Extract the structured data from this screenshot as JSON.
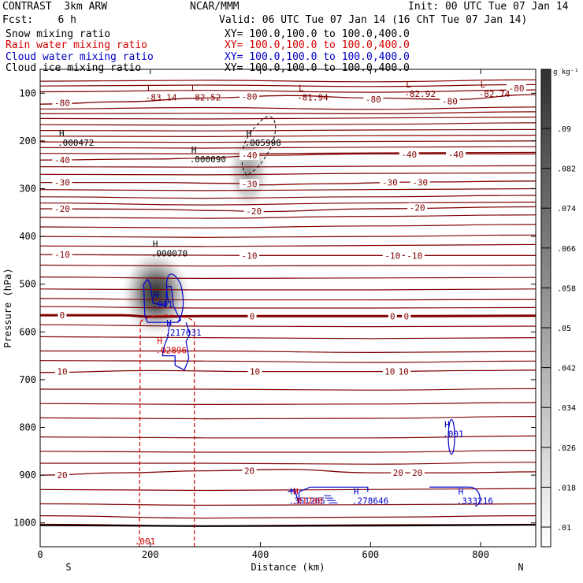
{
  "header": {
    "model": "CONTRAST  3km ARW",
    "center": "NCAR/MMM",
    "init": "Init: 00 UTC Tue 07 Jan 14",
    "fcst": "Fcst:    6 h",
    "valid": "Valid: 06 UTC Tue 07 Jan 14 (16 ChT Tue 07 Jan 14)"
  },
  "fields": [
    {
      "label": "Snow mixing ratio",
      "xy": "XY= 100.0,100.0 to 100.0,400.0",
      "color": "#000000"
    },
    {
      "label": "Rain water mixing ratio",
      "xy": "XY= 100.0,100.0 to 100.0,400.0",
      "color": "#d00000"
    },
    {
      "label": "Cloud water mixing ratio",
      "xy": "XY= 100.0,100.0 to 100.0,400.0",
      "color": "#0000c8"
    },
    {
      "label": "Cloud ice mixing ratio",
      "xy": "XY= 100.0,100.0 to 100.0,400.0",
      "color": "#000000"
    }
  ],
  "colors": {
    "temperature": "#800000",
    "rain": "#d00000",
    "cloud_water": "#0000c8",
    "ice": "#000000"
  },
  "chart_data": {
    "type": "heatmap",
    "xlabel": "Distance (km)",
    "ylabel": "Pressure (hPa)",
    "xlim": [
      0,
      900
    ],
    "ylim": [
      1050,
      50
    ],
    "xticks": [
      "0",
      "200",
      "400",
      "600",
      "800"
    ],
    "yticks": [
      "100",
      "200",
      "300",
      "400",
      "500",
      "600",
      "700",
      "800",
      "900",
      "1000"
    ],
    "xtick_values": [
      0,
      200,
      400,
      600,
      800
    ],
    "ytick_values": [
      100,
      200,
      300,
      400,
      500,
      600,
      700,
      800,
      900,
      1000
    ],
    "direction_left": "S",
    "direction_right": "N",
    "colorbar": {
      "unit": "g kg⁻¹",
      "ticks": [
        ".01",
        ".018",
        ".026",
        ".034",
        ".042",
        ".05",
        ".058",
        ".066",
        ".074",
        ".082",
        ".09"
      ],
      "tick_values": [
        0.01,
        0.018,
        0.026,
        0.034,
        0.042,
        0.05,
        0.058,
        0.066,
        0.074,
        0.082,
        0.09
      ]
    },
    "snow_maxima": [
      {
        "x": 210,
        "p": 520,
        "value": 0.1
      },
      {
        "x": 378,
        "p": 265,
        "value": 0.05
      }
    ],
    "isotherm_levels": [
      -80,
      -40,
      -30,
      -20,
      -10,
      0,
      10,
      20
    ],
    "isotherms": [
      {
        "level": "-80",
        "bold": false,
        "labels": [
          [
            40,
            120
          ],
          [
            380,
            107
          ],
          [
            605,
            113
          ],
          [
            865,
            90
          ],
          [
            744,
            117
          ]
        ],
        "points": [
          [
            0,
            123
          ],
          [
            150,
            118
          ],
          [
            300,
            110
          ],
          [
            450,
            105
          ],
          [
            600,
            110
          ],
          [
            750,
            113
          ],
          [
            900,
            103
          ]
        ]
      },
      {
        "level": "-40",
        "bold": false,
        "labels": [
          [
            40,
            240
          ],
          [
            380,
            230
          ],
          [
            670,
            228
          ],
          [
            755,
            228
          ]
        ],
        "points": [
          [
            0,
            240
          ],
          [
            200,
            238
          ],
          [
            300,
            236
          ],
          [
            400,
            230
          ],
          [
            600,
            227
          ],
          [
            900,
            227
          ]
        ]
      },
      {
        "level": "-30",
        "bold": false,
        "labels": [
          [
            40,
            287
          ],
          [
            380,
            290
          ],
          [
            635,
            287
          ],
          [
            690,
            287
          ]
        ],
        "points": [
          [
            0,
            287
          ],
          [
            200,
            287
          ],
          [
            350,
            289
          ],
          [
            400,
            292
          ],
          [
            500,
            290
          ],
          [
            700,
            286
          ],
          [
            900,
            284
          ]
        ]
      },
      {
        "level": "-20",
        "bold": false,
        "labels": [
          [
            40,
            342
          ],
          [
            388,
            347
          ],
          [
            685,
            340
          ]
        ],
        "points": [
          [
            0,
            342
          ],
          [
            200,
            343
          ],
          [
            330,
            346
          ],
          [
            400,
            348
          ],
          [
            600,
            342
          ],
          [
            900,
            338
          ]
        ]
      },
      {
        "level": "-10",
        "bold": false,
        "labels": [
          [
            40,
            438
          ],
          [
            380,
            440
          ],
          [
            640,
            440
          ],
          [
            680,
            440
          ]
        ],
        "points": [
          [
            0,
            438
          ],
          [
            200,
            439
          ],
          [
            400,
            440
          ],
          [
            600,
            440
          ],
          [
            900,
            440
          ]
        ]
      },
      {
        "level": "0",
        "bold": true,
        "labels": [
          [
            40,
            565
          ],
          [
            385,
            567
          ],
          [
            640,
            567
          ],
          [
            665,
            567
          ]
        ],
        "points": [
          [
            0,
            565
          ],
          [
            150,
            565
          ],
          [
            200,
            568
          ],
          [
            300,
            567
          ],
          [
            500,
            567
          ],
          [
            700,
            567
          ],
          [
            900,
            566
          ]
        ]
      },
      {
        "level": "10",
        "bold": false,
        "labels": [
          [
            40,
            683
          ],
          [
            390,
            683
          ],
          [
            635,
            683
          ],
          [
            660,
            683
          ]
        ],
        "points": [
          [
            0,
            685
          ],
          [
            200,
            681
          ],
          [
            400,
            683
          ],
          [
            600,
            683
          ],
          [
            800,
            681
          ],
          [
            900,
            680
          ]
        ]
      },
      {
        "level": "20",
        "bold": false,
        "labels": [
          [
            40,
            900
          ],
          [
            380,
            891
          ],
          [
            650,
            895
          ],
          [
            685,
            895
          ]
        ],
        "points": [
          [
            0,
            900
          ],
          [
            150,
            895
          ],
          [
            300,
            891
          ],
          [
            450,
            888
          ],
          [
            600,
            895
          ],
          [
            750,
            895
          ],
          [
            900,
            893
          ]
        ]
      }
    ],
    "extra_contours": [
      [
        [
          0,
          75
        ],
        [
          300,
          73
        ],
        [
          600,
          76
        ],
        [
          900,
          72
        ]
      ],
      [
        [
          0,
          85
        ],
        [
          300,
          83
        ],
        [
          600,
          86
        ],
        [
          900,
          82
        ]
      ],
      [
        [
          0,
          97
        ],
        [
          300,
          94
        ],
        [
          600,
          98
        ],
        [
          900,
          93
        ]
      ],
      [
        [
          0,
          133
        ],
        [
          300,
          130
        ],
        [
          600,
          134
        ],
        [
          900,
          129
        ]
      ],
      [
        [
          0,
          143
        ],
        [
          300,
          142
        ],
        [
          600,
          143
        ],
        [
          900,
          139
        ]
      ],
      [
        [
          0,
          153
        ],
        [
          300,
          154
        ],
        [
          600,
          152
        ],
        [
          900,
          150
        ]
      ],
      [
        [
          0,
          166
        ],
        [
          300,
          167
        ],
        [
          600,
          165
        ],
        [
          900,
          162
        ]
      ],
      [
        [
          0,
          178
        ],
        [
          300,
          179
        ],
        [
          600,
          177
        ],
        [
          900,
          176
        ]
      ],
      [
        [
          0,
          190
        ],
        [
          300,
          191
        ],
        [
          600,
          189
        ],
        [
          900,
          188
        ]
      ],
      [
        [
          0,
          202
        ],
        [
          300,
          203
        ],
        [
          600,
          201
        ],
        [
          900,
          200
        ]
      ],
      [
        [
          0,
          214
        ],
        [
          300,
          215
        ],
        [
          600,
          213
        ],
        [
          900,
          212
        ]
      ],
      [
        [
          0,
          226
        ],
        [
          300,
          227
        ],
        [
          600,
          225
        ],
        [
          900,
          224
        ]
      ],
      [
        [
          0,
          254
        ],
        [
          300,
          255
        ],
        [
          600,
          253
        ],
        [
          900,
          252
        ]
      ],
      [
        [
          0,
          270
        ],
        [
          300,
          271
        ],
        [
          600,
          268
        ],
        [
          900,
          267
        ]
      ],
      [
        [
          0,
          302
        ],
        [
          300,
          304
        ],
        [
          600,
          302
        ],
        [
          900,
          300
        ]
      ],
      [
        [
          0,
          317
        ],
        [
          300,
          320
        ],
        [
          600,
          317
        ],
        [
          900,
          314
        ]
      ],
      [
        [
          0,
          330
        ],
        [
          300,
          334
        ],
        [
          600,
          330
        ],
        [
          900,
          328
        ]
      ],
      [
        [
          0,
          360
        ],
        [
          300,
          362
        ],
        [
          600,
          358
        ],
        [
          900,
          355
        ]
      ],
      [
        [
          0,
          380
        ],
        [
          300,
          382
        ],
        [
          600,
          378
        ],
        [
          900,
          375
        ]
      ],
      [
        [
          0,
          400
        ],
        [
          300,
          402
        ],
        [
          600,
          400
        ],
        [
          900,
          397
        ]
      ],
      [
        [
          0,
          420
        ],
        [
          300,
          421
        ],
        [
          600,
          419
        ],
        [
          900,
          417
        ]
      ],
      [
        [
          0,
          460
        ],
        [
          300,
          462
        ],
        [
          600,
          461
        ],
        [
          900,
          460
        ]
      ],
      [
        [
          0,
          485
        ],
        [
          300,
          488
        ],
        [
          600,
          487
        ],
        [
          900,
          486
        ]
      ],
      [
        [
          0,
          510
        ],
        [
          300,
          512
        ],
        [
          600,
          512
        ],
        [
          900,
          510
        ]
      ],
      [
        [
          0,
          530
        ],
        [
          300,
          533
        ],
        [
          600,
          533
        ],
        [
          900,
          532
        ]
      ],
      [
        [
          0,
          547
        ],
        [
          300,
          550
        ],
        [
          600,
          550
        ],
        [
          900,
          549
        ]
      ],
      [
        [
          0,
          585
        ],
        [
          300,
          588
        ],
        [
          600,
          589
        ],
        [
          900,
          588
        ]
      ],
      [
        [
          0,
          610
        ],
        [
          300,
          612
        ],
        [
          600,
          614
        ],
        [
          900,
          612
        ]
      ],
      [
        [
          0,
          640
        ],
        [
          300,
          640
        ],
        [
          600,
          643
        ],
        [
          900,
          641
        ]
      ],
      [
        [
          0,
          660
        ],
        [
          300,
          661
        ],
        [
          600,
          664
        ],
        [
          900,
          661
        ]
      ],
      [
        [
          0,
          720
        ],
        [
          300,
          720
        ],
        [
          600,
          722
        ],
        [
          900,
          719
        ]
      ],
      [
        [
          0,
          750
        ],
        [
          300,
          752
        ],
        [
          600,
          751
        ],
        [
          900,
          748
        ]
      ],
      [
        [
          0,
          780
        ],
        [
          300,
          782
        ],
        [
          600,
          781
        ],
        [
          900,
          777
        ]
      ],
      [
        [
          0,
          820
        ],
        [
          300,
          822
        ],
        [
          600,
          822
        ],
        [
          900,
          818
        ]
      ],
      [
        [
          0,
          850
        ],
        [
          300,
          852
        ],
        [
          600,
          852
        ],
        [
          900,
          848
        ]
      ],
      [
        [
          0,
          875
        ],
        [
          300,
          875
        ],
        [
          600,
          877
        ],
        [
          900,
          873
        ]
      ],
      [
        [
          0,
          930
        ],
        [
          300,
          932
        ],
        [
          600,
          930
        ],
        [
          900,
          928
        ]
      ],
      [
        [
          0,
          960
        ],
        [
          300,
          963
        ],
        [
          600,
          962
        ],
        [
          900,
          960
        ]
      ],
      [
        [
          0,
          985
        ],
        [
          300,
          990
        ],
        [
          600,
          988
        ],
        [
          900,
          985
        ]
      ],
      [
        [
          0,
          1003
        ],
        [
          300,
          1006
        ],
        [
          600,
          1004
        ],
        [
          900,
          1003
        ]
      ]
    ],
    "temperature_extrema": [
      {
        "type": "L",
        "value": "-83.14",
        "x": 200,
        "p": 110
      },
      {
        "type": "L",
        "value": "-82.52",
        "x": 280,
        "p": 110
      },
      {
        "type": "L",
        "value": "-81.94",
        "x": 475,
        "p": 110
      },
      {
        "type": "L",
        "value": "-82.92",
        "x": 670,
        "p": 103
      },
      {
        "type": "L",
        "value": "-82.74",
        "x": 805,
        "p": 103
      }
    ],
    "ice_extrema": [
      {
        "type": "H",
        "value": ".000472",
        "x": 40,
        "p": 205
      },
      {
        "type": "H",
        "value": ".005998",
        "x": 380,
        "p": 205
      },
      {
        "type": "H",
        "value": ".000090",
        "x": 280,
        "p": 240
      },
      {
        "type": "H",
        "value": ".000070",
        "x": 210,
        "p": 437
      }
    ],
    "cloud_water_extrema": [
      {
        "type": "H",
        "value": ".001",
        "x": 212,
        "p": 543
      },
      {
        "type": "H",
        "value": ".217031",
        "x": 235,
        "p": 603
      },
      {
        "type": "H",
        "value": ".001",
        "x": 740,
        "p": 815
      },
      {
        "type": "H",
        "value": ".351265",
        "x": 460,
        "p": 955
      },
      {
        "type": "H",
        "value": ".278646",
        "x": 575,
        "p": 955
      },
      {
        "type": "H",
        "value": ".333216",
        "x": 765,
        "p": 955
      }
    ],
    "rain_extrema": [
      {
        "type": "H",
        "value": ".02896",
        "x": 218,
        "p": 640
      },
      {
        "type": "",
        "value": ".001",
        "x": 180,
        "p": 1040
      },
      {
        "type": "H",
        "value": ".01288",
        "x": 465,
        "p": 955
      }
    ]
  }
}
